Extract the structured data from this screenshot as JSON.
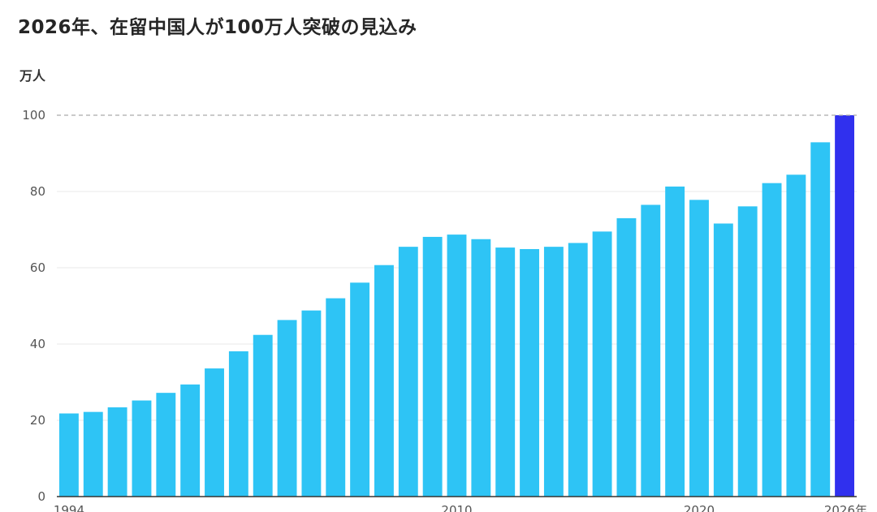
{
  "chart_data": {
    "type": "bar",
    "title": "2026年、在留中国人が100万人突破の見込み",
    "ylabel": "万人",
    "xlabel": "",
    "ylim": [
      0,
      100
    ],
    "yticks": [
      0,
      20,
      40,
      60,
      80,
      100
    ],
    "x_tick_labels": [
      {
        "category": 1994,
        "label": "1994"
      },
      {
        "category": 2010,
        "label": "2010"
      },
      {
        "category": 2020,
        "label": "2020"
      },
      {
        "category": 2026,
        "label": "2026年"
      }
    ],
    "reference_line": {
      "value": 100,
      "style": "dashed"
    },
    "categories": [
      1994,
      1995,
      1996,
      1997,
      1998,
      1999,
      2000,
      2001,
      2002,
      2003,
      2004,
      2005,
      2006,
      2007,
      2008,
      2009,
      2010,
      2011,
      2012,
      2013,
      2014,
      2015,
      2016,
      2017,
      2018,
      2019,
      2020,
      2021,
      2022,
      2023,
      2024,
      2025,
      2026
    ],
    "values": [
      21.8,
      22.2,
      23.4,
      25.2,
      27.2,
      29.4,
      33.6,
      38.1,
      42.4,
      46.3,
      48.8,
      52.0,
      56.1,
      60.7,
      65.5,
      68.1,
      68.7,
      67.5,
      65.3,
      64.9,
      65.5,
      66.5,
      69.5,
      73.0,
      76.5,
      81.3,
      77.8,
      71.6,
      76.1,
      82.2,
      84.4,
      92.9,
      100.0
    ],
    "grid": true,
    "legend": "none",
    "colors": {
      "bar": "#2ec4f5",
      "highlight_bar": "#3030ee",
      "grid": "#e8e8e8",
      "reference_line": "#aaaaaa",
      "baseline": "#333333"
    },
    "highlight_category": 2026
  }
}
